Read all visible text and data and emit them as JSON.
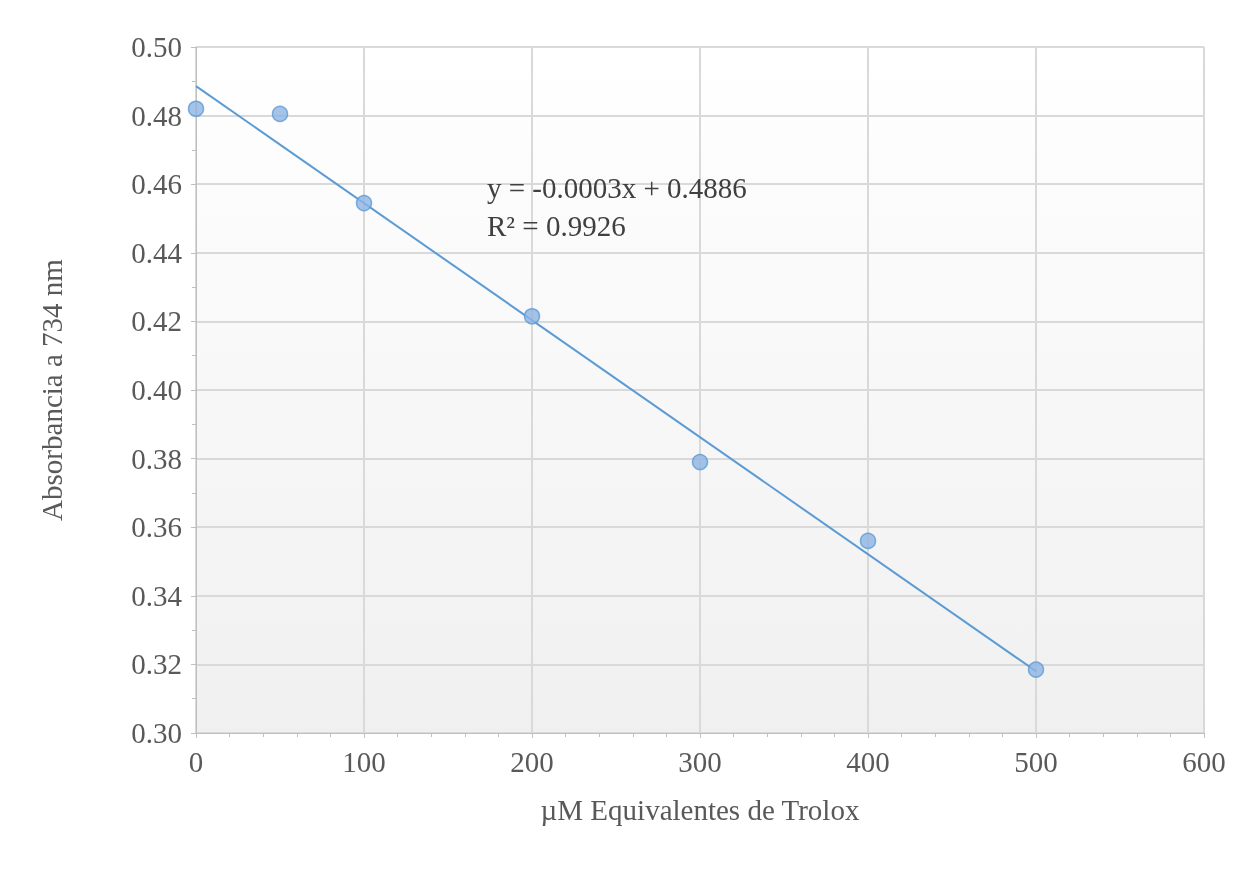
{
  "chart_data": {
    "type": "scatter",
    "xlabel": "µM Equivalentes de Trolox",
    "ylabel": "Absorbancia a 734 nm",
    "x": [
      0,
      50,
      100,
      200,
      300,
      400,
      500
    ],
    "series": [
      {
        "marker": "circle",
        "color": "#5b9bd5",
        "values": [
          0.482,
          0.4805,
          0.4545,
          0.4215,
          0.379,
          0.356,
          0.3185
        ]
      },
      {
        "type": "line",
        "marker": "none",
        "color": "#5b9bd5",
        "x": [
          0,
          500
        ],
        "values": [
          0.4886,
          0.318
        ]
      }
    ],
    "xlim": [
      0,
      600
    ],
    "xticks": [
      0,
      100,
      200,
      300,
      400,
      500,
      600
    ],
    "ylim": [
      0.3,
      0.5
    ],
    "yticks": [
      {
        "value": 0.3,
        "label": "0.30"
      },
      0.32,
      0.34,
      0.36,
      0.38,
      {
        "value": 0.4,
        "label": "0.40"
      },
      0.42,
      0.44,
      0.46,
      0.48,
      {
        "value": 0.5,
        "label": "0.50"
      }
    ],
    "annotations": [
      "y = -0.0003x + 0.4886\nR² = 0.9926"
    ],
    "grid": true
  }
}
